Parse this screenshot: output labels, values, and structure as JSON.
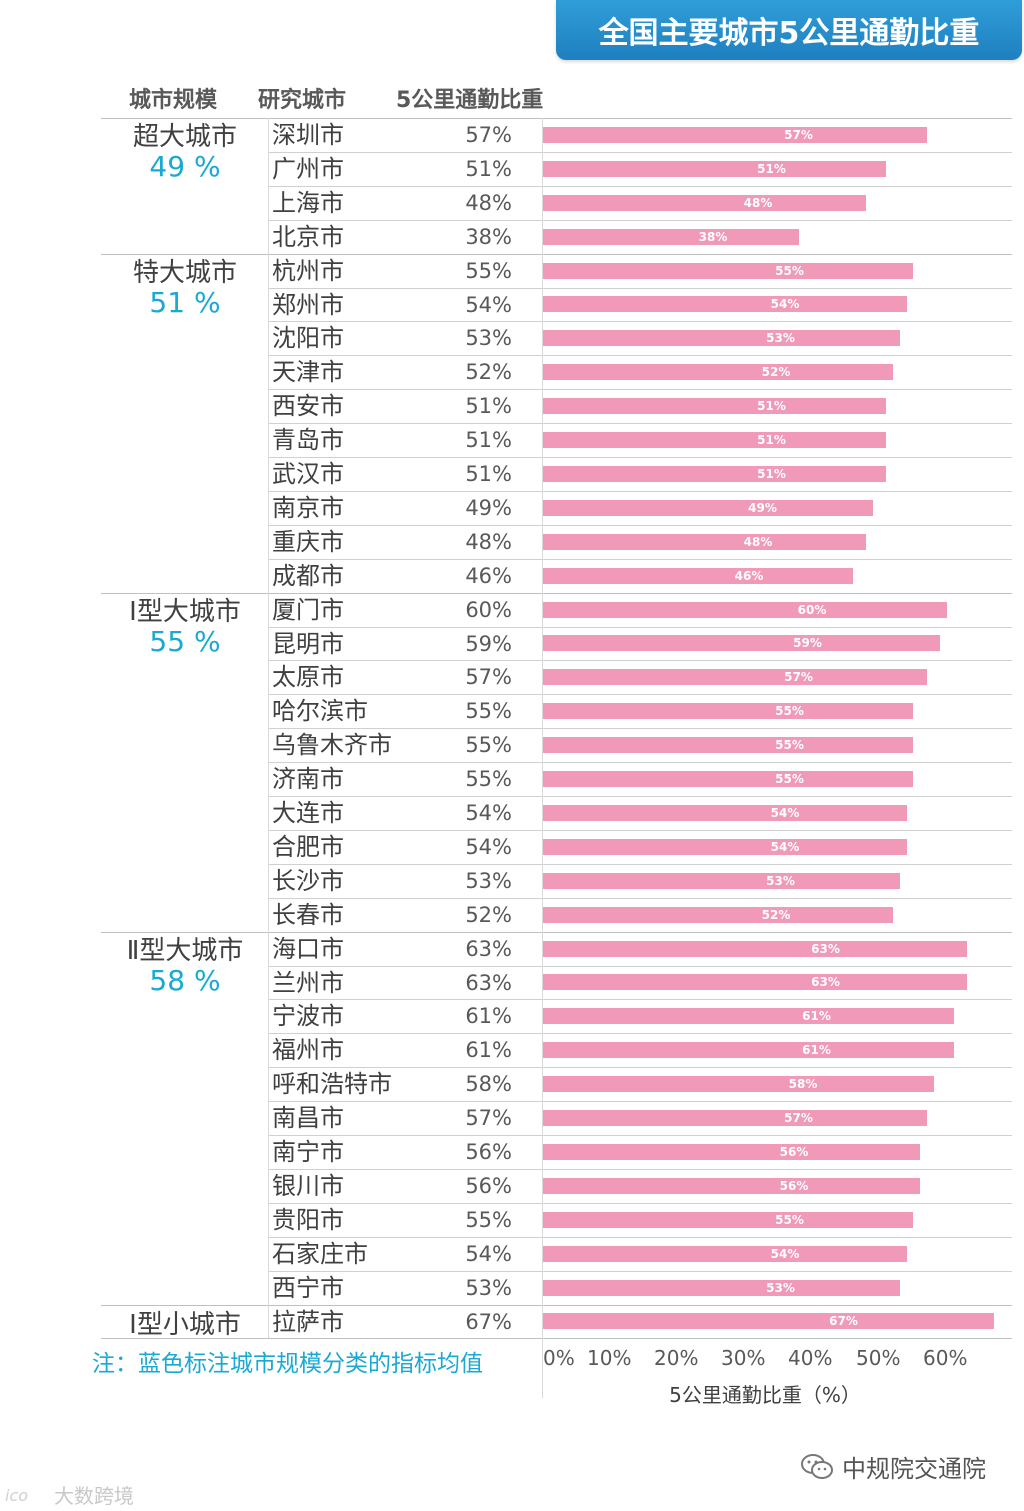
{
  "title": "全国主要城市5公里通勤比重",
  "headers": {
    "scale": "城市规模",
    "city": "研究城市",
    "share": "5公里通勤比重"
  },
  "colors": {
    "bar": "#f199b8",
    "accent": "#19a9d2",
    "title_bg": "#2f9ed8",
    "title_bg_dark": "#1f7fc0"
  },
  "chart_data": {
    "type": "bar",
    "orientation": "horizontal",
    "xlabel": "5公里通勤比重（%）",
    "xlim": [
      0,
      70
    ],
    "x_ticks": [
      "0%",
      "10%",
      "20%",
      "30%",
      "40%",
      "50%",
      "60%"
    ],
    "groups": [
      {
        "name": "超大城市",
        "avg": "49 %",
        "cities": [
          {
            "name": "深圳市",
            "value": 57,
            "label": "57%"
          },
          {
            "name": "广州市",
            "value": 51,
            "label": "51%"
          },
          {
            "name": "上海市",
            "value": 48,
            "label": "48%"
          },
          {
            "name": "北京市",
            "value": 38,
            "label": "38%"
          }
        ]
      },
      {
        "name": "特大城市",
        "avg": "51 %",
        "cities": [
          {
            "name": "杭州市",
            "value": 55,
            "label": "55%"
          },
          {
            "name": "郑州市",
            "value": 54,
            "label": "54%"
          },
          {
            "name": "沈阳市",
            "value": 53,
            "label": "53%"
          },
          {
            "name": "天津市",
            "value": 52,
            "label": "52%"
          },
          {
            "name": "西安市",
            "value": 51,
            "label": "51%"
          },
          {
            "name": "青岛市",
            "value": 51,
            "label": "51%"
          },
          {
            "name": "武汉市",
            "value": 51,
            "label": "51%"
          },
          {
            "name": "南京市",
            "value": 49,
            "label": "49%"
          },
          {
            "name": "重庆市",
            "value": 48,
            "label": "48%"
          },
          {
            "name": "成都市",
            "value": 46,
            "label": "46%"
          }
        ]
      },
      {
        "name": "Ⅰ型大城市",
        "avg": "55 %",
        "cities": [
          {
            "name": "厦门市",
            "value": 60,
            "label": "60%"
          },
          {
            "name": "昆明市",
            "value": 59,
            "label": "59%"
          },
          {
            "name": "太原市",
            "value": 57,
            "label": "57%"
          },
          {
            "name": "哈尔滨市",
            "value": 55,
            "label": "55%"
          },
          {
            "name": "乌鲁木齐市",
            "value": 55,
            "label": "55%"
          },
          {
            "name": "济南市",
            "value": 55,
            "label": "55%"
          },
          {
            "name": "大连市",
            "value": 54,
            "label": "54%"
          },
          {
            "name": "合肥市",
            "value": 54,
            "label": "54%"
          },
          {
            "name": "长沙市",
            "value": 53,
            "label": "53%"
          },
          {
            "name": "长春市",
            "value": 52,
            "label": "52%"
          }
        ]
      },
      {
        "name": "Ⅱ型大城市",
        "avg": "58 %",
        "cities": [
          {
            "name": "海口市",
            "value": 63,
            "label": "63%"
          },
          {
            "name": "兰州市",
            "value": 63,
            "label": "63%"
          },
          {
            "name": "宁波市",
            "value": 61,
            "label": "61%"
          },
          {
            "name": "福州市",
            "value": 61,
            "label": "61%"
          },
          {
            "name": "呼和浩特市",
            "value": 58,
            "label": "58%"
          },
          {
            "name": "南昌市",
            "value": 57,
            "label": "57%"
          },
          {
            "name": "南宁市",
            "value": 56,
            "label": "56%"
          },
          {
            "name": "银川市",
            "value": 56,
            "label": "56%"
          },
          {
            "name": "贵阳市",
            "value": 55,
            "label": "55%"
          },
          {
            "name": "石家庄市",
            "value": 54,
            "label": "54%"
          },
          {
            "name": "西宁市",
            "value": 53,
            "label": "53%"
          }
        ]
      },
      {
        "name": "Ⅰ型小城市",
        "avg": "",
        "cities": [
          {
            "name": "拉萨市",
            "value": 67,
            "label": "67%"
          }
        ]
      }
    ]
  },
  "note": "注：蓝色标注城市规模分类的指标均值",
  "watermarks": {
    "right": "中规院交通院",
    "right_icon": "wechat-icon",
    "left": "大数跨境",
    "left_icon": "ico-logo-icon"
  }
}
